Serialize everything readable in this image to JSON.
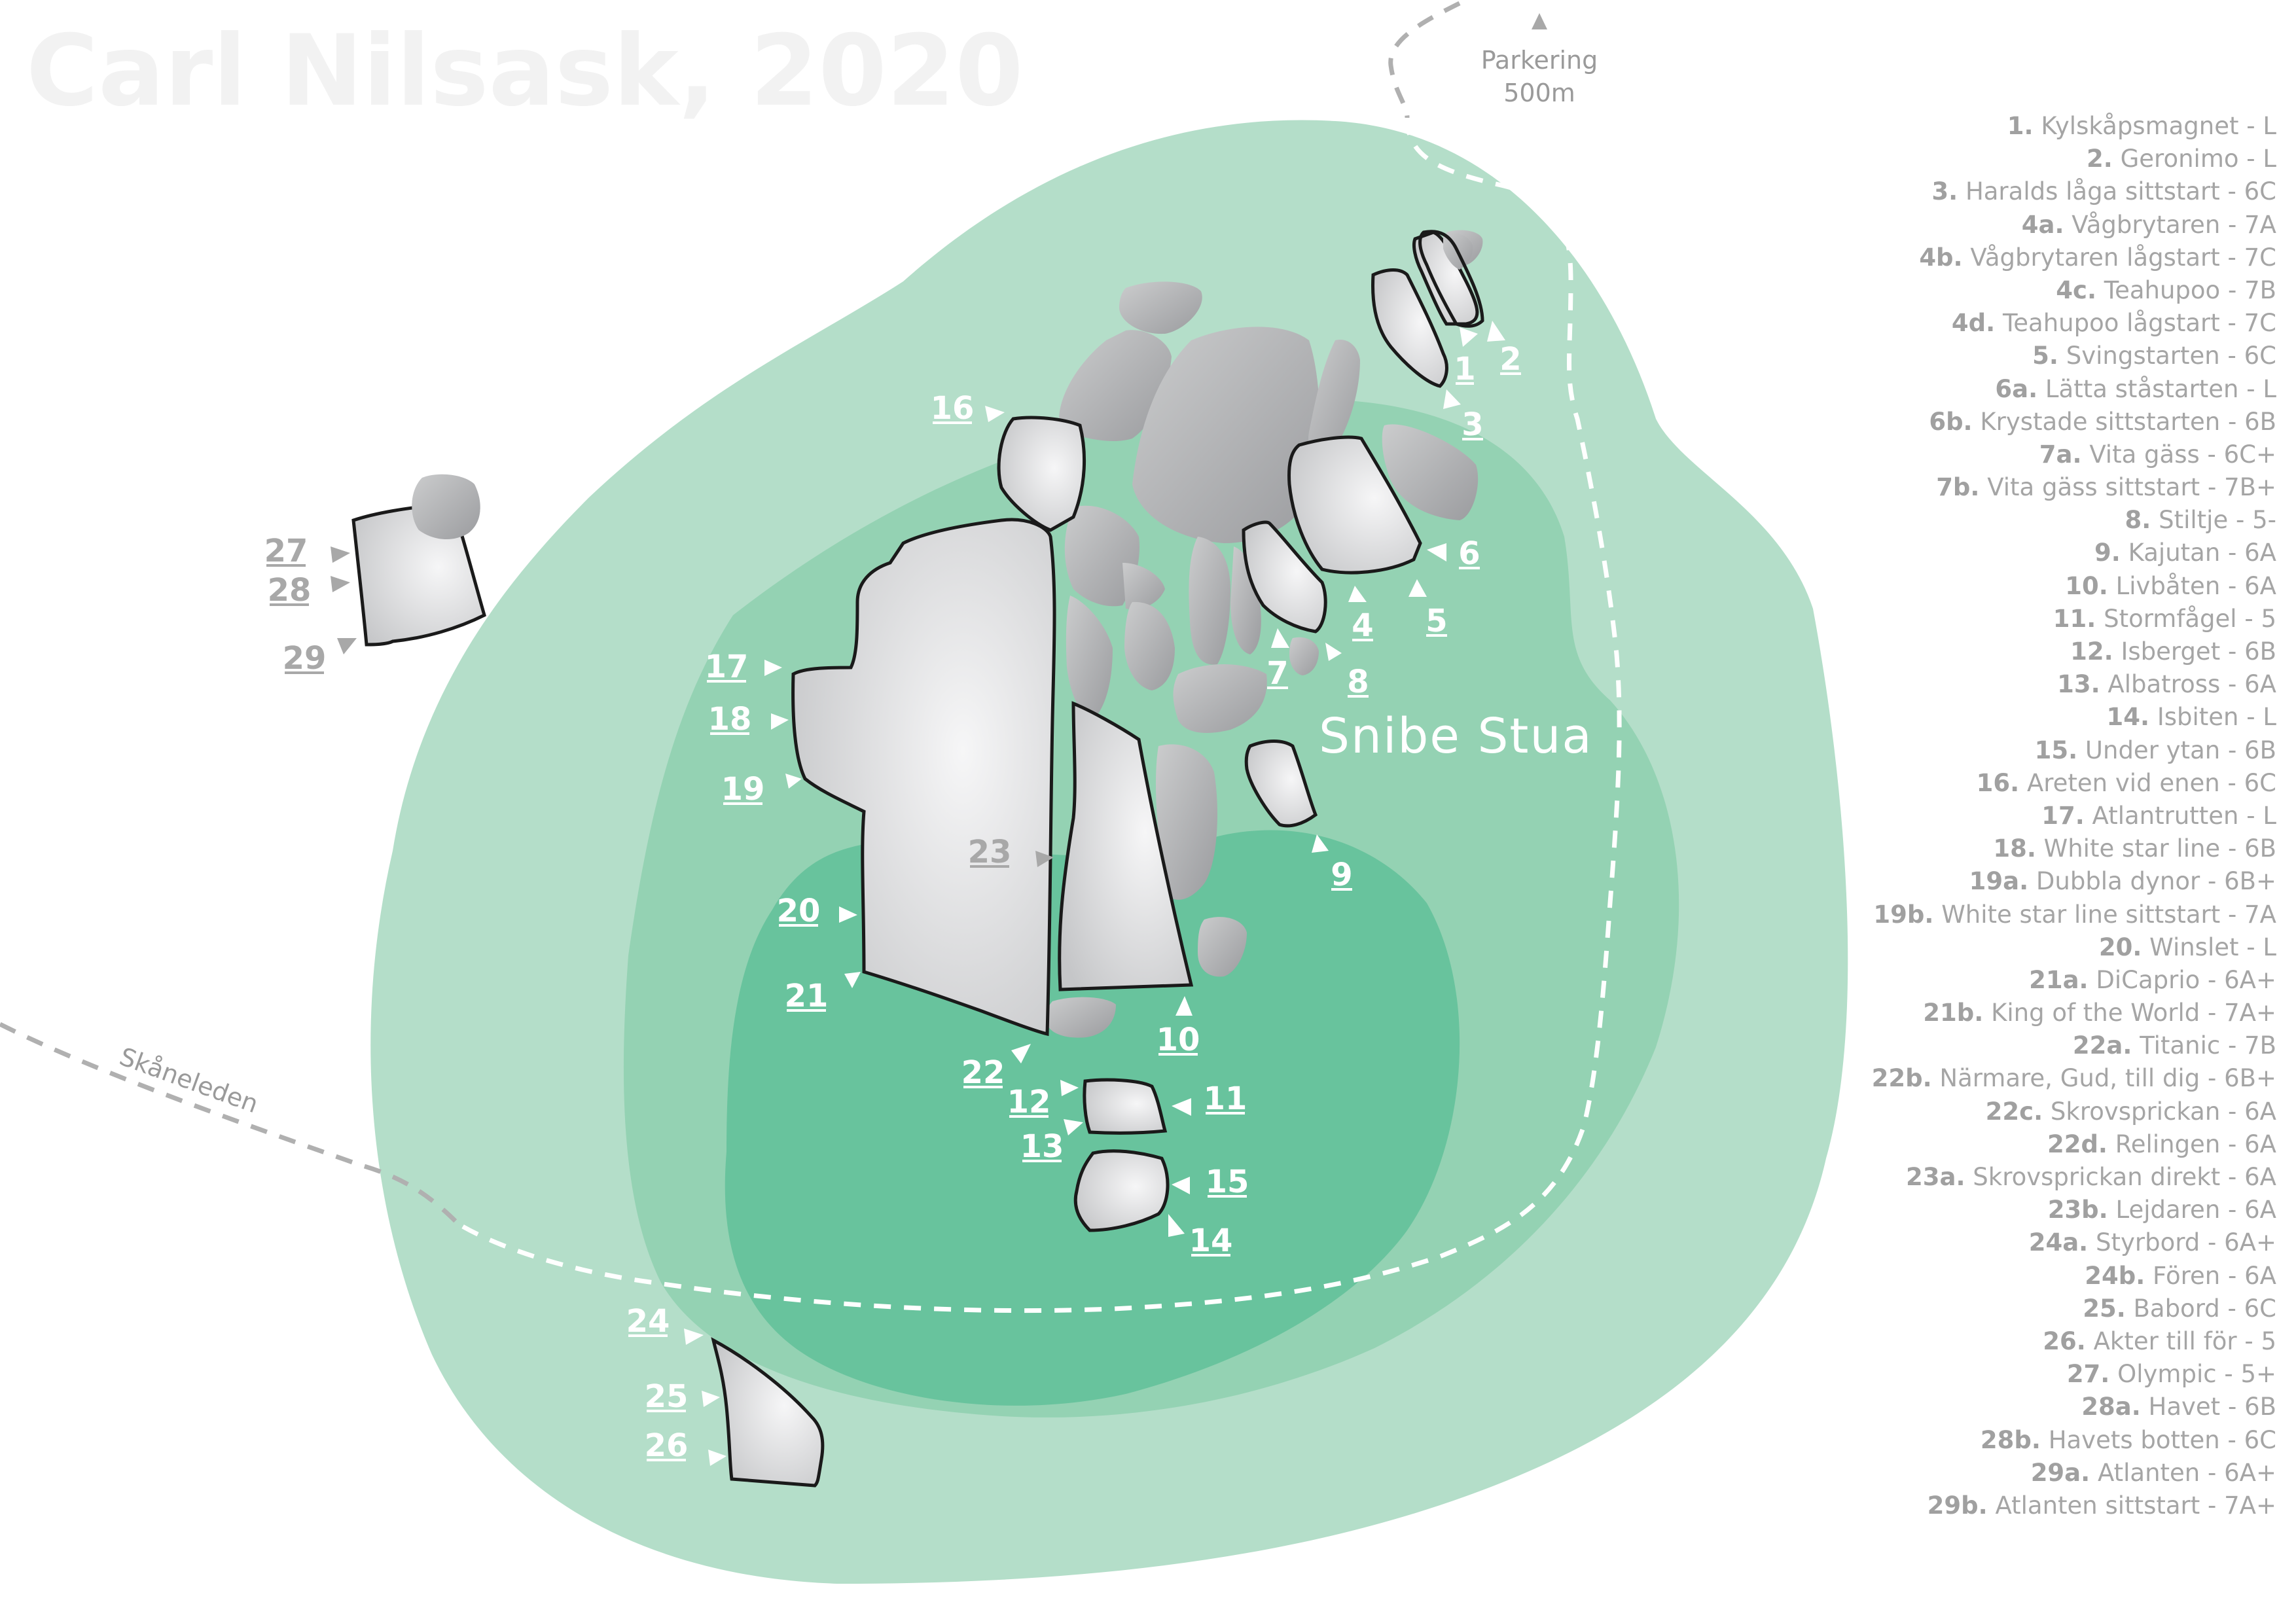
{
  "title": "Carl Nilsask, 2020",
  "area_name": "Snibe Stua",
  "parking": {
    "label": "Parkering",
    "distance": "500m"
  },
  "trail_name": "Skåneleden",
  "colors": {
    "zone_light": "#b4dec9",
    "zone_mid": "#94d2b3",
    "zone_dark": "#68c39d",
    "boulder_stroke": "#1a1a1a",
    "label_white": "#ffffff",
    "label_grey": "#a8a8a8"
  },
  "icons": [
    "parking-arrow-icon",
    "boulder-shape"
  ],
  "markers": {
    "m1": "1",
    "m2": "2",
    "m3": "3",
    "m4": "4",
    "m5": "5",
    "m6": "6",
    "m7": "7",
    "m8": "8",
    "m9": "9",
    "m10": "10",
    "m11": "11",
    "m12": "12",
    "m13": "13",
    "m14": "14",
    "m15": "15",
    "m16": "16",
    "m17": "17",
    "m18": "18",
    "m19": "19",
    "m20": "20",
    "m21": "21",
    "m22": "22",
    "m23": "23",
    "m24": "24",
    "m25": "25",
    "m26": "26",
    "m27": "27",
    "m28": "28",
    "m29": "29"
  },
  "problems": [
    {
      "num": "1.",
      "name": "Kylskåpsmagnet - L"
    },
    {
      "num": "2.",
      "name": "Geronimo - L"
    },
    {
      "num": "3.",
      "name": "Haralds låga sittstart - 6C"
    },
    {
      "num": "4a.",
      "name": "Vågbrytaren - 7A"
    },
    {
      "num": "4b.",
      "name": "Vågbrytaren lågstart - 7C"
    },
    {
      "num": "4c.",
      "name": "Teahupoo - 7B"
    },
    {
      "num": "4d.",
      "name": "Teahupoo lågstart - 7C"
    },
    {
      "num": "5.",
      "name": "Svingstarten - 6C"
    },
    {
      "num": "6a.",
      "name": "Lätta ståstarten - L"
    },
    {
      "num": "6b.",
      "name": "Krystade sittstarten - 6B"
    },
    {
      "num": "7a.",
      "name": "Vita gäss - 6C+"
    },
    {
      "num": "7b.",
      "name": "Vita gäss sittstart - 7B+"
    },
    {
      "num": "8.",
      "name": "Stiltje - 5-"
    },
    {
      "num": "9.",
      "name": "Kajutan - 6A"
    },
    {
      "num": "10.",
      "name": "Livbåten - 6A"
    },
    {
      "num": "11.",
      "name": "Stormfågel - 5"
    },
    {
      "num": "12.",
      "name": "Isberget - 6B"
    },
    {
      "num": "13.",
      "name": "Albatross - 6A"
    },
    {
      "num": "14.",
      "name": "Isbiten - L"
    },
    {
      "num": "15.",
      "name": "Under ytan - 6B"
    },
    {
      "num": "16.",
      "name": "Areten vid enen - 6C"
    },
    {
      "num": "17.",
      "name": "Atlantrutten - L"
    },
    {
      "num": "18.",
      "name": "White star line - 6B"
    },
    {
      "num": "19a.",
      "name": "Dubbla dynor - 6B+"
    },
    {
      "num": "19b.",
      "name": "White star line sittstart - 7A"
    },
    {
      "num": "20.",
      "name": "Winslet - L"
    },
    {
      "num": "21a.",
      "name": "DiCaprio - 6A+"
    },
    {
      "num": "21b.",
      "name": "King of the World - 7A+"
    },
    {
      "num": "22a.",
      "name": "Titanic - 7B"
    },
    {
      "num": "22b.",
      "name": "Närmare, Gud, till dig - 6B+"
    },
    {
      "num": "22c.",
      "name": "Skrovsprickan - 6A"
    },
    {
      "num": "22d.",
      "name": "Relingen - 6A"
    },
    {
      "num": "23a.",
      "name": "Skrovsprickan direkt - 6A"
    },
    {
      "num": "23b.",
      "name": "Lejdaren - 6A"
    },
    {
      "num": "24a.",
      "name": "Styrbord - 6A+"
    },
    {
      "num": "24b.",
      "name": "Fören - 6A"
    },
    {
      "num": "25.",
      "name": "Babord - 6C"
    },
    {
      "num": "26.",
      "name": "Akter till för - 5"
    },
    {
      "num": "27.",
      "name": "Olympic - 5+"
    },
    {
      "num": "28a.",
      "name": "Havet - 6B"
    },
    {
      "num": "28b.",
      "name": "Havets botten - 6C"
    },
    {
      "num": "29a.",
      "name": "Atlanten - 6A+"
    },
    {
      "num": "29b.",
      "name": "Atlanten sittstart - 7A+"
    }
  ]
}
